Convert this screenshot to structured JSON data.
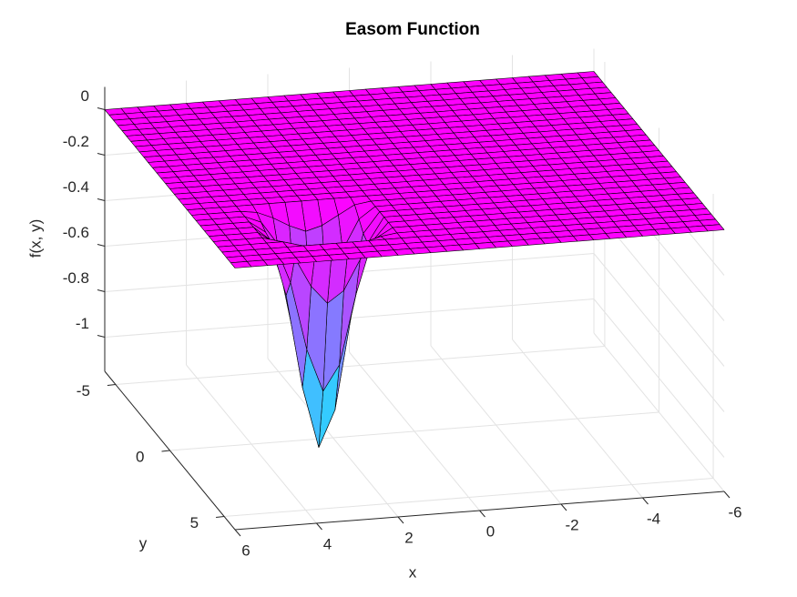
{
  "chart_data": {
    "type": "surface",
    "title": "Easom Function",
    "xlabel": "x",
    "ylabel": "y",
    "zlabel": "f(x, y)",
    "x": [
      -6,
      -5.6,
      -5.2,
      -4.8,
      -4.4,
      -4,
      -3.6,
      -3.2,
      -2.8,
      -2.4,
      -2,
      -1.6,
      -1.2,
      -0.8,
      -0.4,
      0,
      0.4,
      0.8,
      1.2,
      1.6,
      2,
      2.4,
      2.8,
      3.2,
      3.6,
      4,
      4.4,
      4.8,
      5.2,
      5.6,
      6
    ],
    "y": [
      -6,
      -5.6,
      -5.2,
      -4.8,
      -4.4,
      -4,
      -3.6,
      -3.2,
      -2.8,
      -2.4,
      -2,
      -1.6,
      -1.2,
      -0.8,
      -0.4,
      0,
      0.4,
      0.8,
      1.2,
      1.6,
      2,
      2.4,
      2.8,
      3.2,
      3.6,
      4,
      4.4,
      4.8,
      5.2,
      5.6,
      6
    ],
    "z": [
      [
        0,
        0,
        0,
        0,
        0,
        0,
        0,
        0,
        0,
        0,
        0,
        0,
        0,
        0,
        0,
        0,
        0,
        0,
        0,
        0,
        0,
        0,
        0,
        0,
        0,
        0,
        0,
        0,
        0,
        0,
        0
      ],
      [
        0,
        0,
        0,
        0,
        0,
        0,
        0,
        0,
        0,
        0,
        0,
        0,
        0,
        0,
        0,
        0,
        0,
        0,
        0,
        0,
        0,
        0,
        0,
        0,
        0,
        0,
        0,
        0,
        0,
        0,
        0
      ],
      [
        0,
        0,
        0,
        0,
        0,
        0,
        0,
        0,
        0,
        0,
        0,
        0,
        0,
        0,
        0,
        0,
        0,
        0,
        0,
        0,
        0,
        0,
        0,
        0,
        0,
        0,
        0,
        0,
        0,
        0,
        0
      ],
      [
        0,
        0,
        0,
        0,
        0,
        0,
        0,
        0,
        0,
        0,
        0,
        0,
        0,
        0,
        0,
        0,
        0,
        0,
        0,
        0,
        0,
        0,
        0,
        0,
        0,
        0,
        0,
        0,
        0,
        0,
        0
      ],
      [
        0,
        0,
        0,
        0,
        0,
        0,
        0,
        0,
        0,
        0,
        0,
        0,
        0,
        0,
        0,
        0,
        0,
        0,
        0,
        0,
        0,
        0,
        0,
        0,
        0,
        0,
        0,
        0,
        0,
        0,
        0
      ],
      [
        0,
        0,
        0,
        0,
        0,
        0,
        0,
        0,
        0,
        0,
        0,
        0,
        0,
        0,
        0,
        0,
        0,
        0,
        0,
        0,
        0,
        0,
        0,
        0,
        0,
        0,
        0,
        0,
        0,
        0,
        0
      ],
      [
        0,
        0,
        0,
        0,
        0,
        0,
        0,
        0,
        0,
        0,
        0,
        0,
        0,
        0,
        0,
        0,
        0,
        0,
        0,
        0,
        0,
        0,
        0,
        0,
        0,
        0,
        0,
        0,
        0,
        0,
        0
      ],
      [
        0,
        0,
        0,
        0,
        0,
        0,
        0,
        0,
        0,
        0,
        0,
        0,
        0,
        0,
        0,
        0,
        0,
        0,
        0,
        0,
        0,
        0,
        0,
        0,
        0,
        0,
        0,
        0,
        0,
        0,
        0
      ],
      [
        0,
        0,
        0,
        0,
        0,
        0,
        0,
        0,
        0,
        0,
        0,
        0,
        0,
        0,
        0,
        0,
        0,
        0,
        0,
        0,
        0,
        0,
        0,
        0,
        0,
        0,
        0,
        0,
        0,
        0,
        0
      ],
      [
        0,
        0,
        0,
        0,
        0,
        0,
        0,
        0,
        0,
        0,
        0,
        0,
        0,
        0,
        0,
        0,
        0,
        0,
        0,
        0,
        0,
        0,
        0,
        0,
        0,
        0,
        0,
        0,
        0,
        0,
        0
      ],
      [
        0,
        0,
        0,
        0,
        0,
        0,
        0,
        0,
        0,
        0,
        0,
        0,
        0,
        0,
        0,
        0,
        0,
        0,
        0,
        0,
        0,
        0,
        0,
        0,
        0,
        0,
        0,
        0,
        0,
        0,
        0
      ],
      [
        0,
        0,
        0,
        0,
        0,
        0,
        0,
        0,
        0,
        0,
        0,
        0,
        0,
        0,
        0,
        0,
        0,
        0,
        0,
        0,
        0,
        0,
        0,
        0,
        0,
        0,
        0,
        0,
        0,
        0,
        0
      ],
      [
        0,
        0,
        0,
        0,
        0,
        0,
        0,
        0,
        0,
        0,
        0,
        0,
        0,
        0,
        0,
        0,
        0,
        0,
        0,
        0,
        0,
        0,
        0,
        0,
        0,
        0,
        0,
        0,
        0,
        0,
        0
      ],
      [
        0,
        0,
        0,
        0,
        0,
        0,
        0,
        0,
        0,
        0,
        0,
        0,
        0,
        0,
        0,
        0,
        0,
        0,
        0,
        0,
        0,
        0,
        0,
        0,
        0,
        0,
        0,
        0,
        0,
        0,
        0
      ],
      [
        0,
        0,
        0,
        0,
        0,
        0,
        0,
        0,
        0,
        0,
        0,
        0,
        0,
        0,
        0,
        0,
        0,
        0,
        0,
        0,
        0,
        0,
        0,
        0,
        0,
        0,
        0,
        0,
        0,
        0,
        0
      ],
      [
        0,
        0,
        0,
        0,
        0,
        0,
        0,
        0,
        0,
        0,
        0,
        0,
        0,
        0,
        0,
        0,
        0,
        0,
        0,
        0,
        0,
        0,
        0,
        0,
        0,
        0,
        0,
        0,
        0,
        0,
        0
      ],
      [
        0,
        0,
        0,
        0,
        0,
        0,
        0,
        0,
        0,
        0,
        0,
        0,
        0,
        0,
        0,
        0,
        0,
        0,
        0,
        0,
        0,
        0,
        0,
        0,
        0,
        0,
        0,
        0,
        0,
        0,
        0
      ],
      [
        0,
        0,
        0,
        0,
        0,
        0,
        0,
        0,
        0,
        0,
        0,
        0,
        0,
        0,
        0,
        0,
        0,
        0,
        0,
        0,
        0,
        0,
        0,
        0,
        0,
        0,
        0,
        0,
        0,
        0,
        0
      ],
      [
        0,
        0,
        0,
        0,
        0,
        0,
        0,
        0,
        0,
        0,
        0,
        0,
        0,
        0,
        0,
        0,
        0,
        0,
        0,
        0,
        0,
        0,
        0,
        0,
        0,
        0,
        0,
        0,
        0,
        0,
        0
      ],
      [
        0,
        0,
        0,
        0,
        0,
        0,
        0,
        0,
        0,
        0,
        0,
        0,
        0,
        0,
        0,
        0,
        0,
        0,
        0,
        0,
        0,
        0,
        0,
        0,
        0,
        0,
        0,
        0,
        0,
        0,
        0
      ],
      [
        0,
        0,
        0,
        0,
        0,
        0,
        0,
        0,
        0,
        0,
        0,
        0,
        0,
        0,
        0,
        0,
        0,
        0,
        0,
        0,
        -0.01,
        -0.05,
        -0.09,
        -0.11,
        -0.08,
        -0.04,
        -0.01,
        0,
        0,
        0,
        0
      ],
      [
        0,
        0,
        0,
        0,
        0,
        0,
        0,
        0,
        0,
        0,
        0,
        0,
        0,
        0,
        0,
        0,
        0,
        0,
        0,
        0,
        -0.05,
        -0.18,
        -0.36,
        -0.42,
        -0.31,
        -0.13,
        -0.03,
        0,
        0,
        0,
        0
      ],
      [
        0,
        0,
        0,
        0,
        0,
        0,
        0,
        0,
        0,
        0,
        0,
        0,
        0,
        0,
        0,
        0,
        0,
        0,
        0,
        0,
        -0.09,
        -0.36,
        -0.7,
        -0.83,
        -0.61,
        -0.26,
        -0.05,
        0,
        0,
        0,
        0
      ],
      [
        0,
        0,
        0,
        0,
        0,
        0,
        0,
        0,
        0,
        0,
        0,
        0,
        0,
        0,
        0,
        0,
        0,
        0,
        0,
        0,
        -0.11,
        -0.42,
        -0.83,
        -0.99,
        -0.72,
        -0.31,
        -0.06,
        0,
        0,
        0,
        0
      ],
      [
        0,
        0,
        0,
        0,
        0,
        0,
        0,
        0,
        0,
        0,
        0,
        0,
        0,
        0,
        0,
        0,
        0,
        0,
        0,
        0,
        -0.08,
        -0.31,
        -0.61,
        -0.72,
        -0.53,
        -0.23,
        -0.05,
        0,
        0,
        0,
        0
      ],
      [
        0,
        0,
        0,
        0,
        0,
        0,
        0,
        0,
        0,
        0,
        0,
        0,
        0,
        0,
        0,
        0,
        0,
        0,
        0,
        0,
        -0.04,
        -0.13,
        -0.26,
        -0.31,
        -0.23,
        -0.1,
        -0.02,
        0,
        0,
        0,
        0
      ],
      [
        0,
        0,
        0,
        0,
        0,
        0,
        0,
        0,
        0,
        0,
        0,
        0,
        0,
        0,
        0,
        0,
        0,
        0,
        0,
        0,
        -0.01,
        -0.03,
        -0.05,
        -0.06,
        -0.05,
        -0.02,
        0,
        0,
        0,
        0,
        0
      ],
      [
        0,
        0,
        0,
        0,
        0,
        0,
        0,
        0,
        0,
        0,
        0,
        0,
        0,
        0,
        0,
        0,
        0,
        0,
        0,
        0,
        0,
        0,
        0,
        0,
        0,
        0,
        0,
        0,
        0,
        0,
        0
      ],
      [
        0,
        0,
        0,
        0,
        0,
        0,
        0,
        0,
        0,
        0,
        0,
        0,
        0,
        0,
        0,
        0,
        0,
        0,
        0,
        0,
        0,
        0,
        0,
        0,
        0,
        0,
        0,
        0,
        0,
        0,
        0
      ],
      [
        0,
        0,
        0,
        0,
        0,
        0,
        0,
        0,
        0,
        0,
        0,
        0,
        0,
        0,
        0,
        0,
        0,
        0,
        0,
        0,
        0,
        0,
        0,
        0,
        0,
        0,
        0,
        0,
        0,
        0,
        0
      ],
      [
        0,
        0,
        0,
        0,
        0,
        0,
        0,
        0,
        0,
        0,
        0,
        0,
        0,
        0,
        0,
        0,
        0,
        0,
        0,
        0,
        0,
        0,
        0,
        0,
        0,
        0,
        0,
        0,
        0,
        0,
        0
      ]
    ],
    "xlim": [
      -6,
      6
    ],
    "ylim": [
      -6,
      6
    ],
    "zlim": [
      -1.15,
      0.1
    ],
    "xticks": [
      -6,
      -4,
      -2,
      0,
      2,
      4,
      6
    ],
    "yticks": [
      -5,
      0,
      5
    ],
    "zticks": [
      -1,
      -0.8,
      -0.6,
      -0.4,
      -0.2,
      0
    ],
    "colormap": [
      "#00ffff",
      "#ff00ff"
    ],
    "edge_color": "#000000",
    "grid": true
  }
}
